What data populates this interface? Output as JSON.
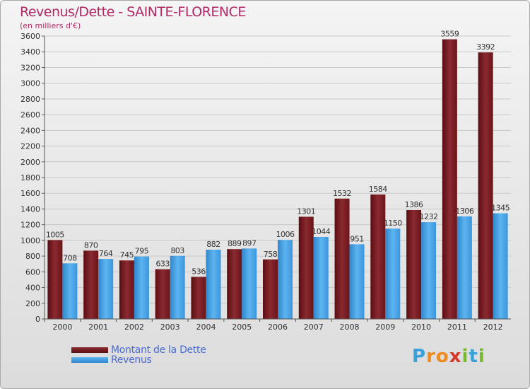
{
  "header": {
    "title": "Revenus/Dette - SAINTE-FLORENCE",
    "subtitle": "(en milliers d'€)"
  },
  "logo": {
    "text": "Proxiti",
    "letters": [
      "P",
      "r",
      "o",
      "x",
      "i",
      "t",
      "i"
    ],
    "colors": [
      "#3aa0d8",
      "#f08a1e",
      "#f08a1e",
      "#d43a2a",
      "#7ab82e",
      "#3aa0d8",
      "#7ab82e"
    ]
  },
  "colors": {
    "dette": "#7a1e22",
    "revenus": "#3d9be0",
    "grid": "#c8c8c8",
    "axis": "#555555",
    "title": "#b22867",
    "legend_text": "#4a6cd4"
  },
  "chart_data": {
    "type": "bar",
    "title": "Revenus/Dette - SAINTE-FLORENCE",
    "subtitle": "(en milliers d'€)",
    "xlabel": "",
    "ylabel": "",
    "ylim": [
      0,
      3600
    ],
    "ytick_step": 200,
    "yticks": [
      "0",
      "200",
      "400",
      "600",
      "800",
      "1000",
      "1200",
      "1400",
      "1600",
      "1800",
      "2000",
      "2200",
      "2400",
      "2600",
      "2800",
      "3000",
      "3200",
      "3400",
      "3600"
    ],
    "grid": true,
    "legend_position": "bottom-left",
    "categories": [
      "2000",
      "2001",
      "2002",
      "2003",
      "2004",
      "2005",
      "2006",
      "2007",
      "2008",
      "2009",
      "2010",
      "2011",
      "2012"
    ],
    "series": [
      {
        "name": "Montant de la Dette",
        "key": "dette",
        "values": [
          1005,
          870,
          745,
          633,
          536,
          889,
          758,
          1301,
          1532,
          1584,
          1386,
          3559,
          3392
        ]
      },
      {
        "name": "Revenus",
        "key": "revenus",
        "values": [
          708,
          764,
          795,
          803,
          882,
          897,
          1006,
          1044,
          951,
          1150,
          1232,
          1306,
          1345
        ]
      }
    ]
  }
}
